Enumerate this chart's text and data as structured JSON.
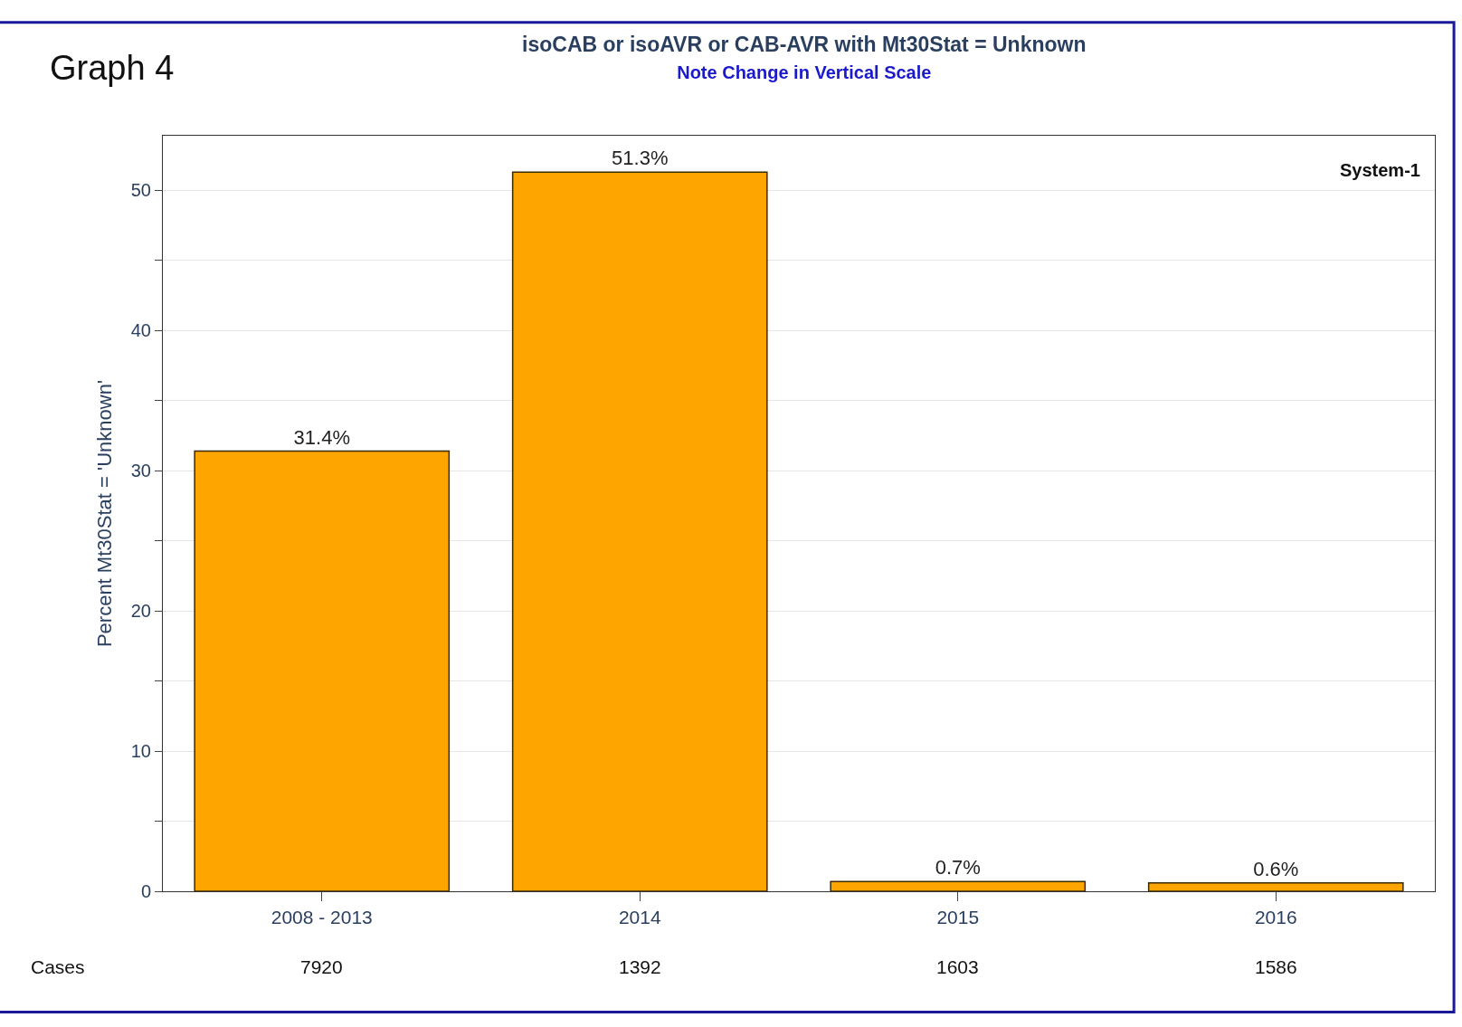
{
  "chart_data": {
    "type": "bar",
    "title": "isoCAB or isoAVR or CAB-AVR with Mt30Stat = Unknown",
    "subtitle": "Note Change in Vertical Scale",
    "ylabel": "Percent Mt30Stat = 'Unknown'",
    "categories": [
      "2008 - 2013",
      "2014",
      "2015",
      "2016"
    ],
    "values": [
      31.4,
      51.3,
      0.7,
      0.6
    ],
    "value_labels": [
      "31.4%",
      "51.3%",
      "0.7%",
      "0.6%"
    ],
    "color": "#ffa500",
    "ylim": [
      0,
      53.9
    ],
    "yticks": [
      0,
      {
        "value": 5,
        "label": null
      },
      10,
      {
        "value": 15,
        "label": null
      },
      20,
      {
        "value": 25,
        "label": null
      },
      30,
      {
        "value": 35,
        "label": null
      },
      40,
      {
        "value": 45,
        "label": null
      },
      50
    ],
    "grid": "y",
    "annotations": [
      "Graph 4",
      "System-1",
      "Cases",
      "7920",
      "1392",
      "1603",
      "1586"
    ]
  }
}
